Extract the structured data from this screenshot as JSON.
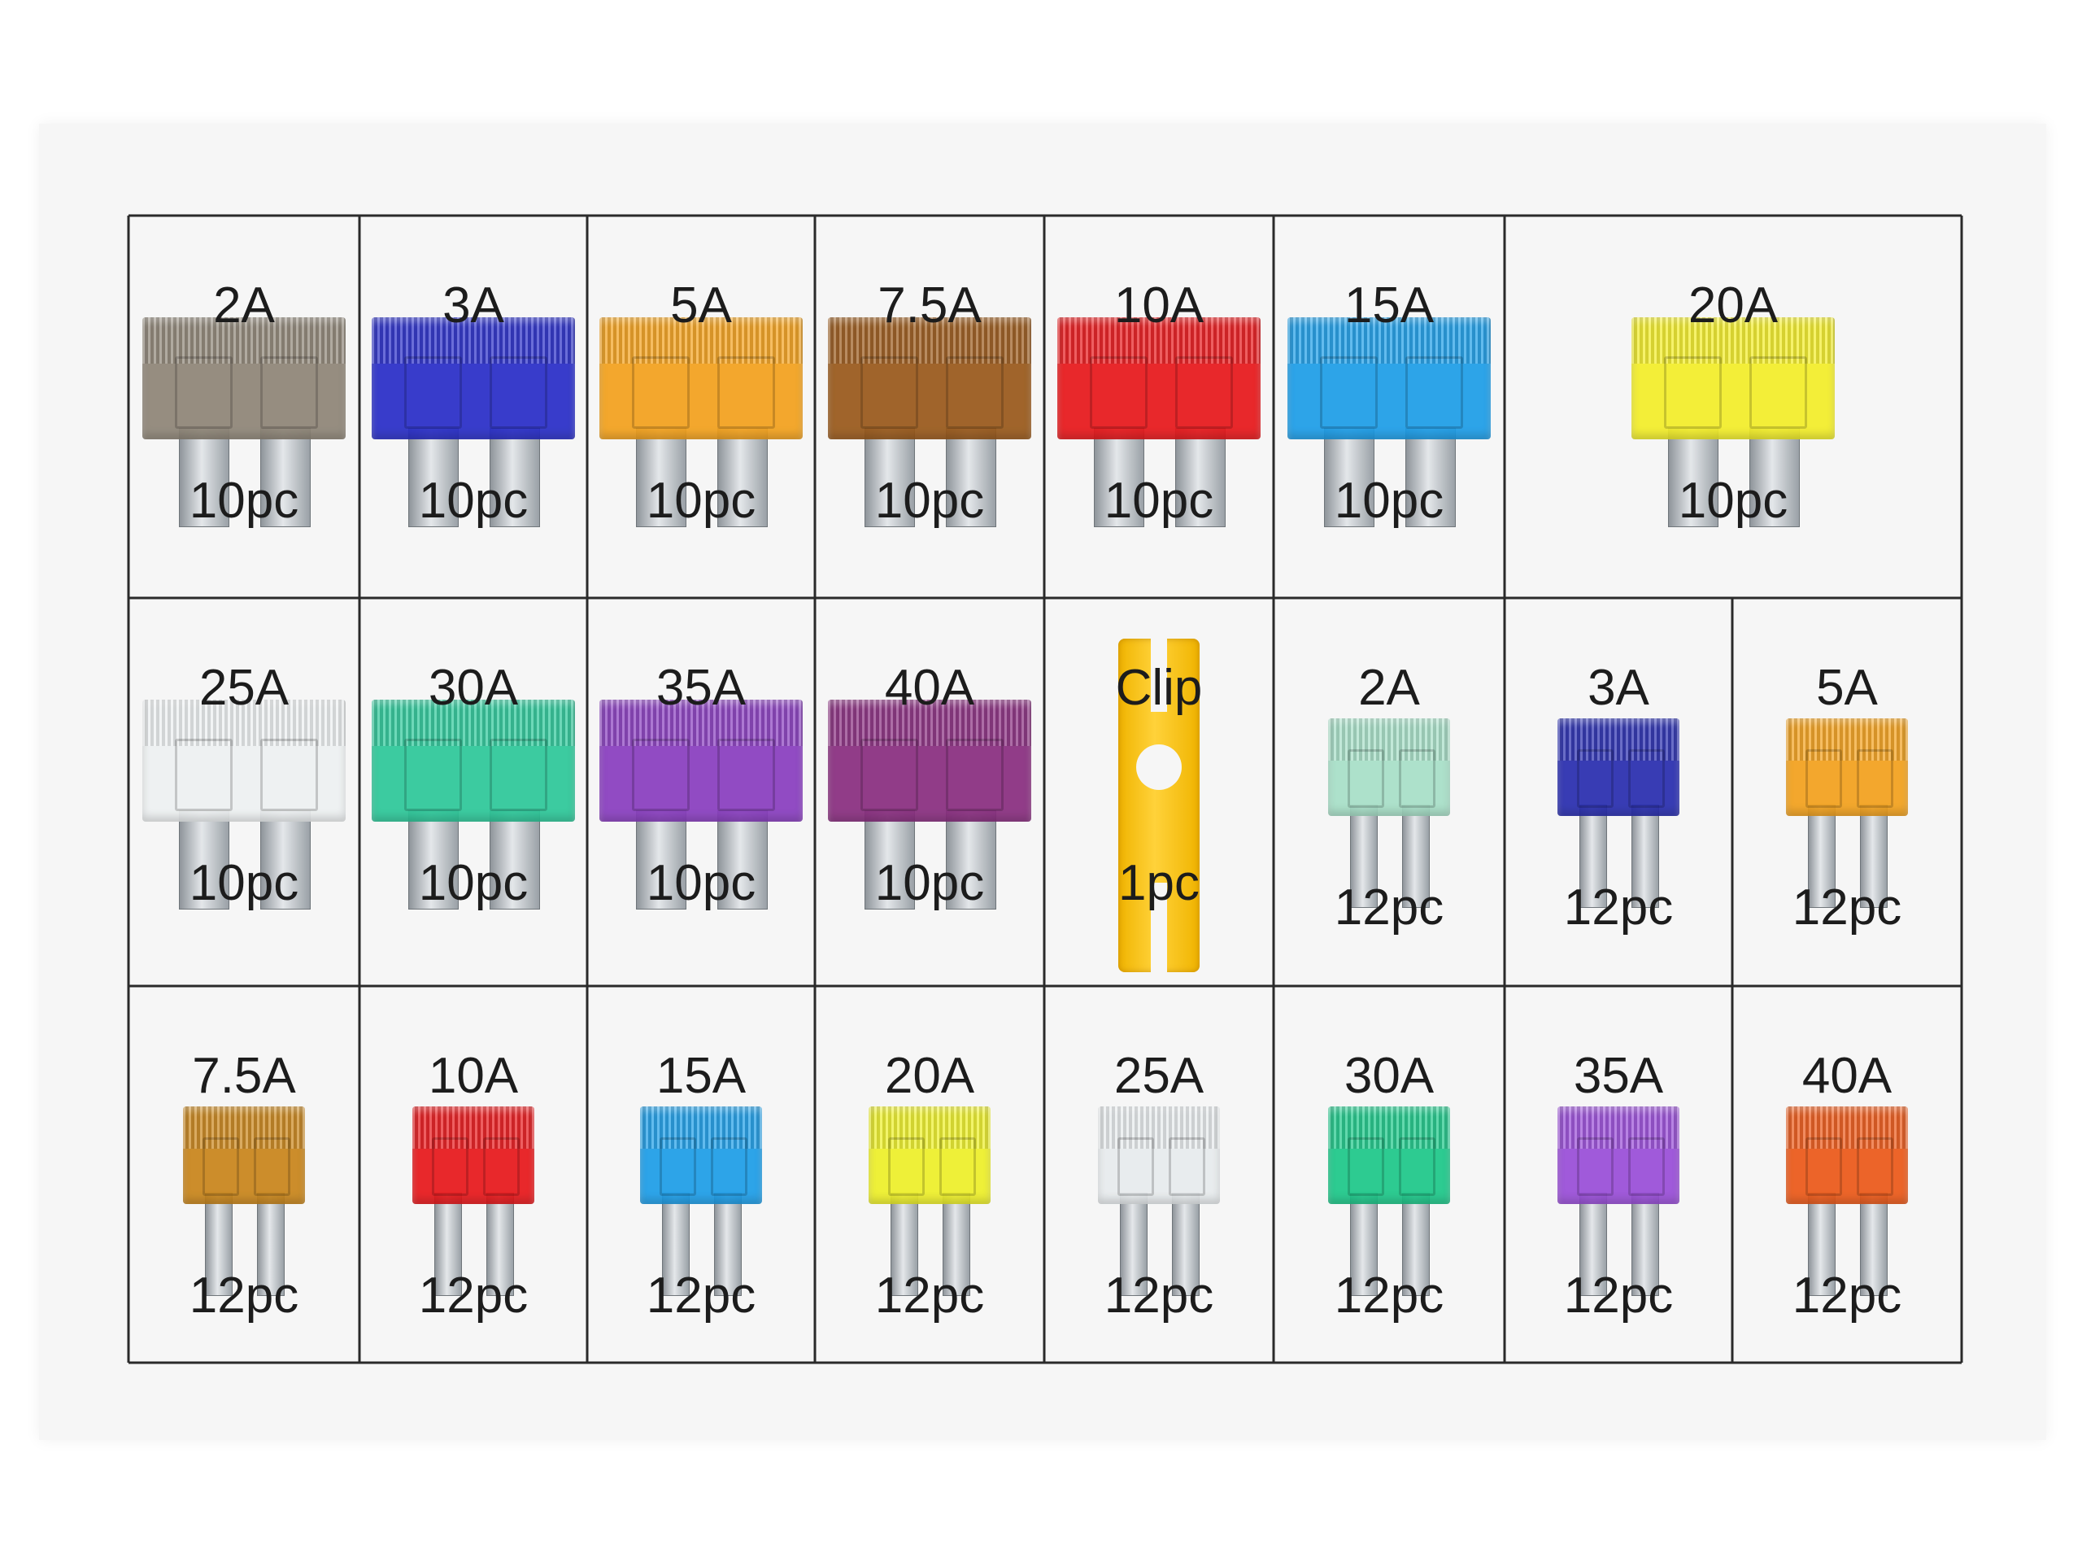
{
  "sheet": {
    "rows": [
      {
        "cells": [
          {
            "label": "2A",
            "qty": "10pc",
            "color": "#8f8678",
            "kind": "standard"
          },
          {
            "label": "3A",
            "qty": "10pc",
            "color": "#2a2fc8",
            "kind": "standard"
          },
          {
            "label": "5A",
            "qty": "10pc",
            "color": "#f3a21e",
            "kind": "standard"
          },
          {
            "label": "7.5A",
            "qty": "10pc",
            "color": "#9a5a1c",
            "kind": "standard"
          },
          {
            "label": "10A",
            "qty": "10pc",
            "color": "#e8191c",
            "kind": "standard"
          },
          {
            "label": "15A",
            "qty": "10pc",
            "color": "#1e9ee8",
            "kind": "standard"
          },
          {
            "label": "20A",
            "qty": "10pc",
            "color": "#f3ee2a",
            "kind": "standard"
          }
        ]
      },
      {
        "cells": [
          {
            "label": "25A",
            "qty": "10pc",
            "color": "#eef1f2",
            "kind": "standard"
          },
          {
            "label": "30A",
            "qty": "10pc",
            "color": "#2ec89a",
            "kind": "standard"
          },
          {
            "label": "35A",
            "qty": "10pc",
            "color": "#8a3fc0",
            "kind": "standard"
          },
          {
            "label": "40A",
            "qty": "10pc",
            "color": "#8a2f80",
            "kind": "standard"
          },
          {
            "label": "Clip",
            "qty": "1pc",
            "color": "#ffc814",
            "kind": "puller"
          },
          {
            "label": "2A",
            "qty": "12pc",
            "color": "#a8e0c8",
            "kind": "mini"
          },
          {
            "label": "3A",
            "qty": "12pc",
            "color": "#2a2fb0",
            "kind": "mini"
          },
          {
            "label": "5A",
            "qty": "12pc",
            "color": "#f3a21e",
            "kind": "mini"
          }
        ]
      },
      {
        "cells": [
          {
            "label": "7.5A",
            "qty": "12pc",
            "color": "#c9861c",
            "kind": "mini"
          },
          {
            "label": "10A",
            "qty": "12pc",
            "color": "#e8191c",
            "kind": "mini"
          },
          {
            "label": "15A",
            "qty": "12pc",
            "color": "#1e9ee8",
            "kind": "mini"
          },
          {
            "label": "20A",
            "qty": "12pc",
            "color": "#eef02a",
            "kind": "mini"
          },
          {
            "label": "25A",
            "qty": "12pc",
            "color": "#e8ecee",
            "kind": "mini"
          },
          {
            "label": "30A",
            "qty": "12pc",
            "color": "#1ec88a",
            "kind": "mini"
          },
          {
            "label": "35A",
            "qty": "12pc",
            "color": "#9a4fd8",
            "kind": "mini"
          },
          {
            "label": "40A",
            "qty": "12pc",
            "color": "#ec5a1a",
            "kind": "mini"
          }
        ]
      }
    ]
  }
}
